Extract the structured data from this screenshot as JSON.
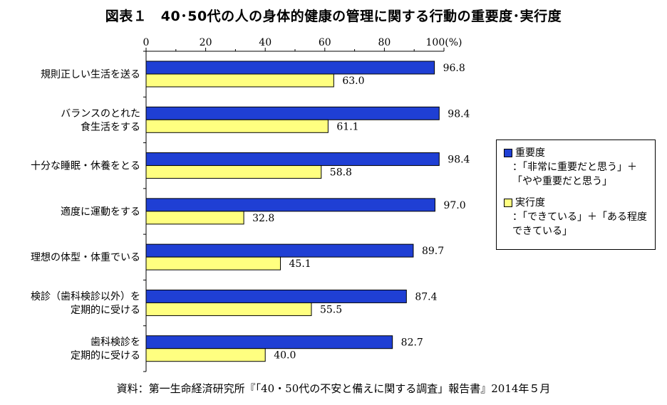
{
  "title": "図表１　40･50代の人の身体的健康の管理に関する行動の重要度･実行度",
  "source": "資料：第一生命経済研究所『「40・50代の不安と備えに関する調査」報告書』2014年５月",
  "legend": {
    "items": [
      {
        "name": "重要度",
        "desc": "：「非常に重要だと思う」＋\n「やや重要だと思う」",
        "color": "#1f3fd4"
      },
      {
        "name": "実行度",
        "desc": "：「できている」＋「ある程度\nできている」",
        "color": "#ffff80"
      }
    ]
  },
  "chart_data": {
    "type": "bar",
    "orientation": "horizontal",
    "title": "図表１　40･50代の人の身体的健康の管理に関する行動の重要度･実行度",
    "categories": [
      "規則正しい生活を送る",
      "バランスのとれた\n食生活をする",
      "十分な睡眠・休養をとる",
      "適度に運動をする",
      "理想の体型・体重でいる",
      "検診（歯科検診以外）を\n定期的に受ける",
      "歯科検診を\n定期的に受ける"
    ],
    "series": [
      {
        "name": "重要度",
        "values": [
          96.8,
          98.4,
          98.4,
          97.0,
          89.7,
          87.4,
          82.7
        ],
        "labels": [
          "96.8",
          "98.4",
          "98.4",
          "97.0",
          "89.7",
          "87.4",
          "82.7"
        ],
        "color": "#1f3fd4"
      },
      {
        "name": "実行度",
        "values": [
          63.0,
          61.1,
          58.8,
          32.8,
          45.1,
          55.5,
          40.0
        ],
        "labels": [
          "63.0",
          "61.1",
          "58.8",
          "32.8",
          "45.1",
          "55.5",
          "40.0"
        ],
        "color": "#ffff80"
      }
    ],
    "xlim": [
      0,
      100
    ],
    "xticks": [
      "0",
      "20",
      "40",
      "60",
      "80",
      "100(%)"
    ],
    "xtick_values": [
      0,
      20,
      40,
      60,
      80,
      100
    ],
    "grid": false,
    "legend_position": "right"
  }
}
